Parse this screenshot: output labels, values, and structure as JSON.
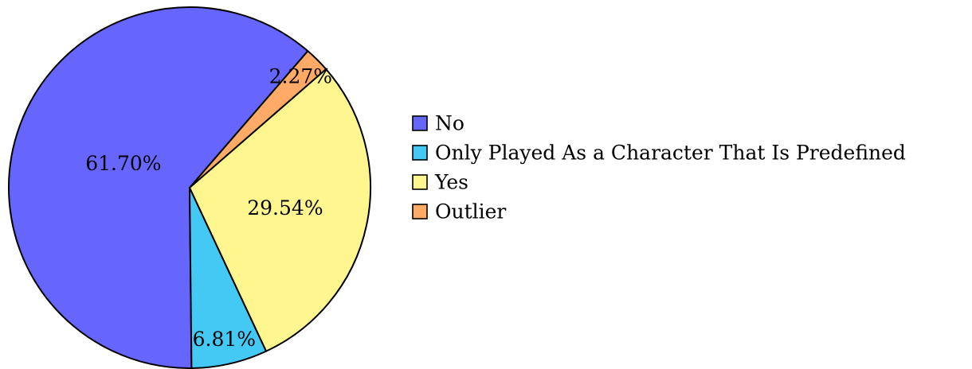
{
  "chart_data": {
    "type": "pie",
    "labels": [
      "No",
      "Only Played As a Character That Is Predefined",
      "Yes",
      "Outlier"
    ],
    "values": [
      61.7,
      6.81,
      29.54,
      2.27
    ],
    "value_labels": [
      "61.70%",
      "6.81%",
      "29.54%",
      "2.27%"
    ],
    "colors": [
      "#6666ff",
      "#44c8f4",
      "#fff68f",
      "#ffaa66"
    ],
    "legend": "right"
  }
}
